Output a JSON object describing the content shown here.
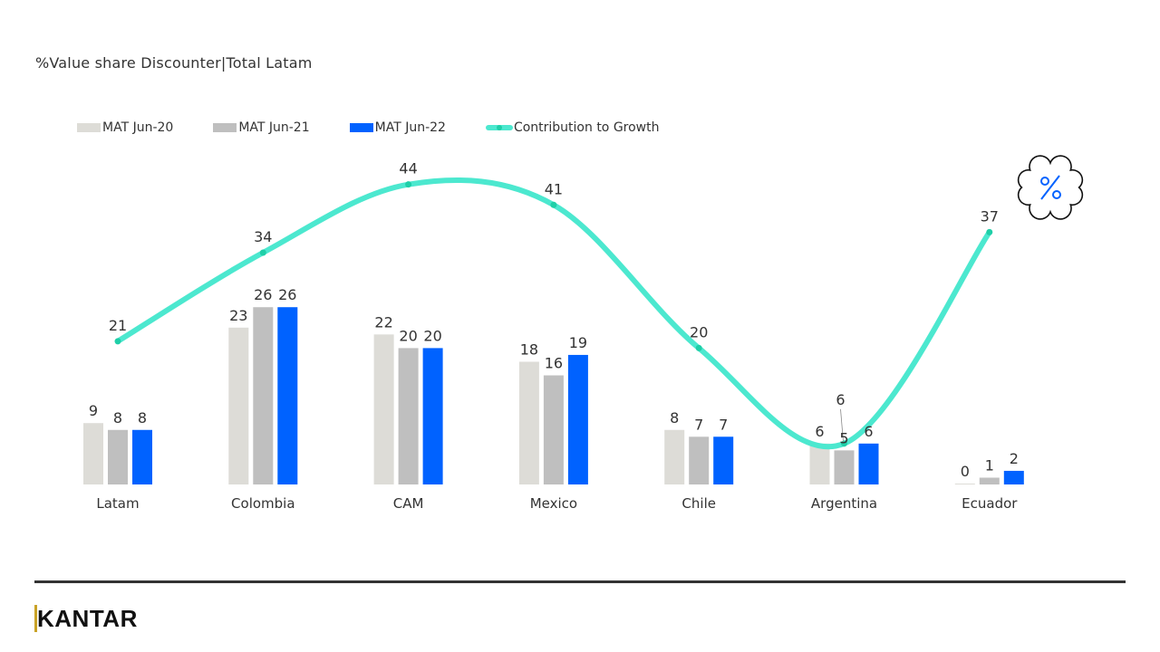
{
  "chart_data": {
    "type": "bar",
    "title": "%Value share Discounter|Total  Latam",
    "categories": [
      "Latam",
      "Colombia",
      "CAM",
      "Mexico",
      "Chile",
      "Argentina",
      "Ecuador"
    ],
    "series": [
      {
        "name": "MAT Jun-20",
        "type": "bar",
        "color": "#dddcd7",
        "values": [
          9,
          23,
          22,
          18,
          8,
          6,
          0
        ]
      },
      {
        "name": "MAT Jun-21",
        "type": "bar",
        "color": "#bfbfbf",
        "values": [
          8,
          26,
          20,
          16,
          7,
          5,
          1
        ]
      },
      {
        "name": "MAT Jun-22",
        "type": "bar",
        "color": "#0062ff",
        "values": [
          8,
          26,
          20,
          19,
          7,
          6,
          2
        ]
      },
      {
        "name": "Contribution to Growth",
        "type": "line",
        "smooth": true,
        "color": "#4ce8cf",
        "values": [
          21,
          34,
          44,
          41,
          20,
          6,
          37
        ]
      }
    ],
    "legend_position": "top-left",
    "grid": false,
    "axes_visible": false
  },
  "badge_icon": "percent-cloud-icon",
  "badge_color": "#0062ff",
  "logo": "KANTAR"
}
